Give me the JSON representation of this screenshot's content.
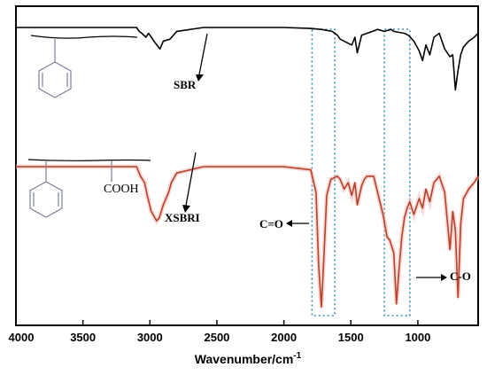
{
  "chart_data": {
    "type": "line",
    "xlabel_base": "Wavenumber/cm",
    "xlabel_sup": "-1",
    "xlim": [
      4000,
      550
    ],
    "x_reversed": true,
    "ticks": [
      "4000",
      "3500",
      "3000",
      "2500",
      "2000",
      "1500",
      "1000"
    ],
    "tick_values": [
      4000,
      3500,
      3000,
      2500,
      2000,
      1500,
      1000
    ],
    "series": [
      {
        "name": "SBR",
        "color": "#000000",
        "baseline": 0.9,
        "x": [
          4000,
          3100,
          3080,
          3060,
          3030,
          3010,
          2960,
          2925,
          2900,
          2850,
          2800,
          2600,
          2000,
          1800,
          1720,
          1640,
          1600,
          1580,
          1493,
          1470,
          1452,
          1420,
          1380,
          1300,
          1250,
          1200,
          1180,
          1100,
          1070,
          1030,
          990,
          965,
          940,
          911,
          880,
          840,
          800,
          760,
          740,
          720,
          700,
          680,
          660,
          620,
          580,
          550
        ],
        "y": [
          0.9,
          0.9,
          0.86,
          0.84,
          0.8,
          0.84,
          0.74,
          0.68,
          0.76,
          0.78,
          0.86,
          0.9,
          0.9,
          0.89,
          0.88,
          0.86,
          0.82,
          0.78,
          0.72,
          0.8,
          0.64,
          0.82,
          0.84,
          0.88,
          0.86,
          0.88,
          0.86,
          0.84,
          0.82,
          0.76,
          0.66,
          0.56,
          0.72,
          0.62,
          0.8,
          0.84,
          0.68,
          0.6,
          0.62,
          0.26,
          0.46,
          0.62,
          0.7,
          0.76,
          0.8,
          0.84
        ]
      },
      {
        "name": "XSBRI",
        "color": "#b5432b",
        "baseline": 0.9,
        "x": [
          4000,
          3100,
          3070,
          3040,
          3020,
          2990,
          2950,
          2930,
          2900,
          2880,
          2860,
          2840,
          2800,
          2600,
          2000,
          1800,
          1760,
          1740,
          1720,
          1700,
          1680,
          1650,
          1600,
          1580,
          1550,
          1520,
          1493,
          1470,
          1452,
          1420,
          1400,
          1380,
          1330,
          1260,
          1230,
          1210,
          1180,
          1160,
          1140,
          1120,
          1100,
          1080,
          1060,
          1030,
          990,
          965,
          940,
          911,
          880,
          840,
          800,
          760,
          740,
          720,
          700,
          680,
          660,
          620,
          580,
          550
        ],
        "y": [
          0.9,
          0.9,
          0.84,
          0.8,
          0.72,
          0.62,
          0.56,
          0.58,
          0.66,
          0.7,
          0.74,
          0.8,
          0.86,
          0.9,
          0.9,
          0.88,
          0.74,
          0.28,
          0.02,
          0.36,
          0.72,
          0.82,
          0.84,
          0.82,
          0.76,
          0.8,
          0.72,
          0.8,
          0.66,
          0.78,
          0.82,
          0.84,
          0.84,
          0.6,
          0.46,
          0.44,
          0.36,
          0.04,
          0.26,
          0.46,
          0.58,
          0.64,
          0.68,
          0.6,
          0.7,
          0.64,
          0.76,
          0.68,
          0.8,
          0.84,
          0.74,
          0.38,
          0.62,
          0.5,
          0.08,
          0.54,
          0.7,
          0.76,
          0.8,
          0.84
        ]
      }
    ],
    "annotations": {
      "sbr": "SBR",
      "xsbri": "XSBRI",
      "cooh": "COOH",
      "co_double": "C=O",
      "co_single": "C-O"
    },
    "highlight_regions": [
      [
        1790,
        1620
      ],
      [
        1250,
        1060
      ]
    ]
  }
}
